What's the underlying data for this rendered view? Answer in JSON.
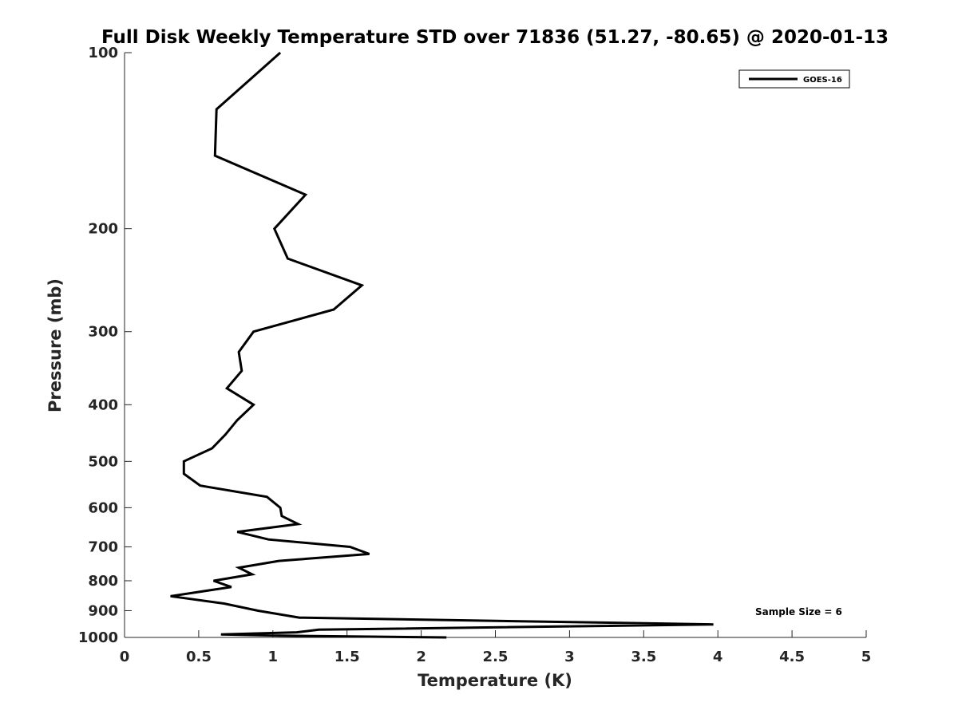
{
  "chart_data": {
    "type": "line",
    "title": "Full Disk Weekly Temperature STD over 71836 (51.27, -80.65) @ 2020-01-13",
    "xlabel": "Temperature (K)",
    "ylabel": "Pressure (mb)",
    "xlim": [
      0,
      5
    ],
    "ylim": [
      100,
      1000
    ],
    "y_scale": "log",
    "y_reversed": true,
    "x_ticks": [
      "0",
      "0.5",
      "1",
      "1.5",
      "2",
      "2.5",
      "3",
      "3.5",
      "4",
      "4.5",
      "5"
    ],
    "y_ticks": [
      "100",
      "200",
      "300",
      "400",
      "500",
      "600",
      "700",
      "800",
      "900",
      "1000"
    ],
    "grid": false,
    "legend": {
      "placement": "top-right",
      "entries": [
        "GOES-16"
      ]
    },
    "annotation": "Sample Size = 6",
    "series": [
      {
        "name": "GOES-16",
        "color": "#000000",
        "points": [
          [
            1.05,
            100
          ],
          [
            0.62,
            125
          ],
          [
            0.61,
            150
          ],
          [
            1.22,
            175
          ],
          [
            1.01,
            200
          ],
          [
            1.1,
            225
          ],
          [
            1.6,
            250
          ],
          [
            1.41,
            275
          ],
          [
            0.87,
            300
          ],
          [
            0.77,
            325
          ],
          [
            0.79,
            350
          ],
          [
            0.69,
            375
          ],
          [
            0.87,
            400
          ],
          [
            0.76,
            425
          ],
          [
            0.68,
            450
          ],
          [
            0.59,
            475
          ],
          [
            0.4,
            500
          ],
          [
            0.4,
            525
          ],
          [
            0.51,
            550
          ],
          [
            0.96,
            575
          ],
          [
            1.05,
            600
          ],
          [
            1.06,
            620
          ],
          [
            1.17,
            640
          ],
          [
            0.76,
            660
          ],
          [
            0.97,
            680
          ],
          [
            1.52,
            700
          ],
          [
            1.65,
            720
          ],
          [
            1.04,
            740
          ],
          [
            0.77,
            760
          ],
          [
            0.86,
            780
          ],
          [
            0.6,
            800
          ],
          [
            0.72,
            820
          ],
          [
            0.31,
            850
          ],
          [
            0.67,
            875
          ],
          [
            0.9,
            900
          ],
          [
            1.18,
            925
          ],
          [
            3.97,
            950
          ],
          [
            1.31,
            970
          ],
          [
            1.16,
            980
          ],
          [
            0.65,
            988
          ],
          [
            1.05,
            993
          ],
          [
            2.17,
            1000
          ]
        ]
      }
    ]
  }
}
